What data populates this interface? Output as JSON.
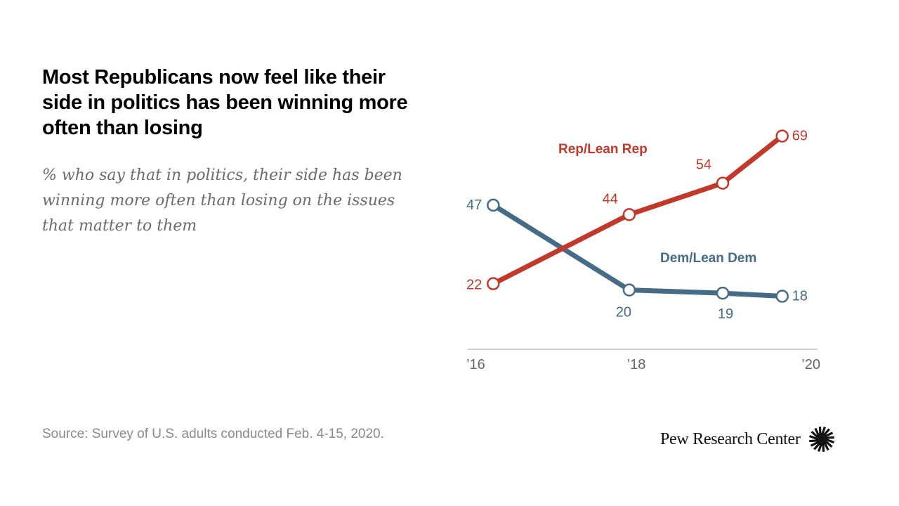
{
  "title": "Most Republicans now feel like their side in politics has been winning more often than losing",
  "subtitle": "% who say that in politics, their side has been winning more often than losing on the issues that matter to them",
  "source": "Source: Survey of U.S. adults conducted Feb. 4-15, 2020.",
  "logo": {
    "text": "Pew Research Center",
    "icon": "pew-sunburst-icon"
  },
  "colors": {
    "rep": "#c0392b",
    "dem": "#456b86",
    "axis": "#bbbbbb",
    "tick_text": "#666666"
  },
  "chart_data": {
    "type": "line",
    "title": "Most Republicans now feel like their side in politics has been winning more often than losing",
    "xlabel": "",
    "ylabel": "",
    "x_ticks": [
      {
        "value": 2016,
        "label": "’16"
      },
      {
        "value": 2018,
        "label": "’18"
      },
      {
        "value": 2020,
        "label": "’20"
      }
    ],
    "xlim": [
      2016,
      2020
    ],
    "ylim": [
      0,
      100
    ],
    "grid": false,
    "series": [
      {
        "name": "Rep/Lean Rep",
        "color": "#c0392b",
        "x": [
          2016.3,
          2017.9,
          2019.0,
          2019.7
        ],
        "values": [
          22,
          44,
          54,
          69
        ],
        "labels": [
          "22",
          "44",
          "54",
          "69"
        ]
      },
      {
        "name": "Dem/Lean Dem",
        "color": "#456b86",
        "x": [
          2016.3,
          2017.9,
          2019.0,
          2019.7
        ],
        "values": [
          47,
          20,
          19,
          18
        ],
        "labels": [
          "47",
          "20",
          "19",
          "18"
        ]
      }
    ]
  }
}
